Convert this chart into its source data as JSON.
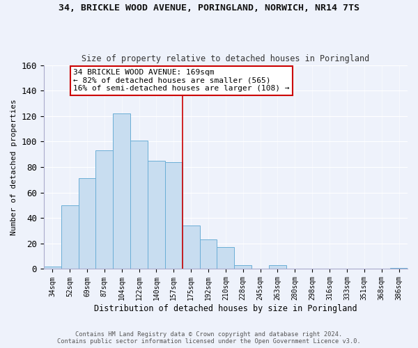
{
  "title1": "34, BRICKLE WOOD AVENUE, PORINGLAND, NORWICH, NR14 7TS",
  "title2": "Size of property relative to detached houses in Poringland",
  "xlabel": "Distribution of detached houses by size in Poringland",
  "ylabel": "Number of detached properties",
  "bar_labels": [
    "34sqm",
    "52sqm",
    "69sqm",
    "87sqm",
    "104sqm",
    "122sqm",
    "140sqm",
    "157sqm",
    "175sqm",
    "192sqm",
    "210sqm",
    "228sqm",
    "245sqm",
    "263sqm",
    "280sqm",
    "298sqm",
    "316sqm",
    "333sqm",
    "351sqm",
    "368sqm",
    "386sqm"
  ],
  "bar_values": [
    2,
    50,
    71,
    93,
    122,
    101,
    85,
    84,
    34,
    23,
    17,
    3,
    0,
    3,
    0,
    0,
    0,
    0,
    0,
    0,
    1
  ],
  "bar_color": "#c8ddf0",
  "bar_edge_color": "#6baed6",
  "property_line_index": 7.5,
  "annotation_line1": "34 BRICKLE WOOD AVENUE: 169sqm",
  "annotation_line2": "← 82% of detached houses are smaller (565)",
  "annotation_line3": "16% of semi-detached houses are larger (108) →",
  "annotation_box_color": "#ffffff",
  "annotation_box_edge": "#cc0000",
  "property_line_color": "#cc0000",
  "ylim": [
    0,
    160
  ],
  "yticks": [
    0,
    20,
    40,
    60,
    80,
    100,
    120,
    140,
    160
  ],
  "footer1": "Contains HM Land Registry data © Crown copyright and database right 2024.",
  "footer2": "Contains public sector information licensed under the Open Government Licence v3.0.",
  "bg_color": "#eef2fb"
}
